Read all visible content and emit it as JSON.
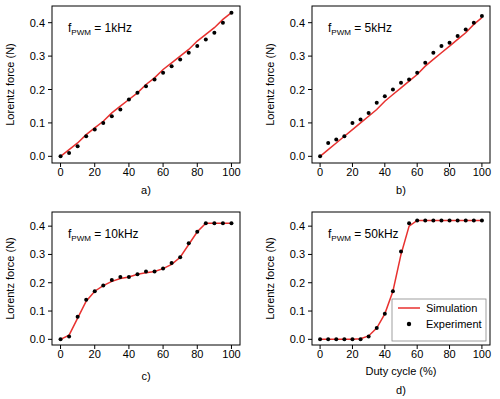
{
  "chart_data": [
    {
      "type": "line",
      "panel_label": "a)",
      "y_label": "Lorentz force (N)",
      "annotation": {
        "base": "f",
        "sub": "PWM",
        "rest": " = 1kHz"
      },
      "x": [
        0,
        5,
        10,
        15,
        20,
        25,
        30,
        35,
        40,
        45,
        50,
        55,
        60,
        65,
        70,
        75,
        80,
        85,
        90,
        95,
        100
      ],
      "xlim": [
        -5,
        105
      ],
      "xticks": [
        0,
        20,
        40,
        60,
        80,
        100
      ],
      "ylim": [
        -0.02,
        0.45
      ],
      "yticks": [
        {
          "value": 0,
          "label": "0.0"
        },
        0.1,
        0.2,
        0.3,
        0.4
      ],
      "series": [
        {
          "type": "line",
          "color": "#e8312f",
          "line_style": "solid",
          "values": [
            0,
            0.02,
            0.04,
            0.065,
            0.085,
            0.105,
            0.13,
            0.15,
            0.17,
            0.19,
            0.215,
            0.235,
            0.26,
            0.28,
            0.3,
            0.32,
            0.345,
            0.365,
            0.385,
            0.41,
            0.43
          ]
        },
        {
          "type": "scatter",
          "color": "#000000",
          "marker": "circle",
          "values": [
            0,
            0.01,
            0.03,
            0.06,
            0.08,
            0.1,
            0.12,
            0.14,
            0.17,
            0.19,
            0.21,
            0.23,
            0.25,
            0.27,
            0.29,
            0.31,
            0.33,
            0.35,
            0.37,
            0.4,
            0.43
          ]
        }
      ]
    },
    {
      "type": "line",
      "panel_label": "b)",
      "y_label": "Lorentz force (N)",
      "annotation": {
        "base": "f",
        "sub": "PWM",
        "rest": " = 5kHz"
      },
      "x": [
        0,
        5,
        10,
        15,
        20,
        25,
        30,
        35,
        40,
        45,
        50,
        55,
        60,
        65,
        70,
        75,
        80,
        85,
        90,
        95,
        100
      ],
      "xlim": [
        -5,
        105
      ],
      "xticks": [
        0,
        20,
        40,
        60,
        80,
        100
      ],
      "ylim": [
        -0.02,
        0.45
      ],
      "yticks": [
        {
          "value": 0,
          "label": "0.0"
        },
        0.1,
        0.2,
        0.3,
        0.4
      ],
      "series": [
        {
          "type": "line",
          "color": "#e8312f",
          "line_style": "solid",
          "values": [
            0,
            0.02,
            0.04,
            0.06,
            0.08,
            0.1,
            0.12,
            0.14,
            0.165,
            0.185,
            0.205,
            0.225,
            0.245,
            0.27,
            0.29,
            0.31,
            0.33,
            0.35,
            0.37,
            0.395,
            0.415
          ]
        },
        {
          "type": "scatter",
          "color": "#000000",
          "marker": "circle",
          "values": [
            0,
            0.04,
            0.05,
            0.06,
            0.1,
            0.11,
            0.13,
            0.16,
            0.18,
            0.2,
            0.22,
            0.23,
            0.25,
            0.28,
            0.31,
            0.33,
            0.34,
            0.36,
            0.38,
            0.4,
            0.42
          ]
        }
      ]
    },
    {
      "type": "line",
      "panel_label": "c)",
      "y_label": "Lorentz force (N)",
      "annotation": {
        "base": "f",
        "sub": "PWM",
        "rest": " = 10kHz"
      },
      "x": [
        0,
        5,
        10,
        15,
        20,
        25,
        30,
        35,
        40,
        45,
        50,
        55,
        60,
        65,
        70,
        75,
        80,
        85,
        90,
        95,
        100
      ],
      "xlim": [
        -5,
        105
      ],
      "xticks": [
        0,
        20,
        40,
        60,
        80,
        100
      ],
      "ylim": [
        -0.02,
        0.45
      ],
      "yticks": [
        {
          "value": 0,
          "label": "0.0"
        },
        0.1,
        0.2,
        0.3,
        0.4
      ],
      "series": [
        {
          "type": "line",
          "color": "#e8312f",
          "line_style": "solid",
          "values": [
            0,
            0.015,
            0.075,
            0.135,
            0.17,
            0.19,
            0.205,
            0.215,
            0.22,
            0.23,
            0.235,
            0.24,
            0.25,
            0.265,
            0.29,
            0.335,
            0.38,
            0.41,
            0.41,
            0.41,
            0.41
          ]
        },
        {
          "type": "scatter",
          "color": "#000000",
          "marker": "circle",
          "values": [
            0,
            0.01,
            0.08,
            0.14,
            0.17,
            0.19,
            0.21,
            0.22,
            0.22,
            0.23,
            0.24,
            0.24,
            0.25,
            0.27,
            0.29,
            0.34,
            0.38,
            0.41,
            0.41,
            0.41,
            0.41
          ]
        }
      ]
    },
    {
      "type": "line",
      "panel_label": "d)",
      "y_label": "Lorentz force (N)",
      "x_label": "Duty cycle (%)",
      "annotation": {
        "base": "f",
        "sub": "PWM",
        "rest": " = 50kHz"
      },
      "legend": "lower right",
      "x": [
        0,
        5,
        10,
        15,
        20,
        25,
        30,
        35,
        40,
        45,
        50,
        55,
        60,
        65,
        70,
        75,
        80,
        85,
        90,
        95,
        100
      ],
      "xlim": [
        -5,
        105
      ],
      "xticks": [
        0,
        20,
        40,
        60,
        80,
        100
      ],
      "ylim": [
        -0.02,
        0.45
      ],
      "yticks": [
        {
          "value": 0,
          "label": "0.0"
        },
        0.1,
        0.2,
        0.3,
        0.4
      ],
      "series": [
        {
          "name": "Simulation",
          "type": "line",
          "color": "#e8312f",
          "line_style": "solid",
          "values": [
            0,
            0,
            0,
            0,
            0,
            0.002,
            0.012,
            0.04,
            0.09,
            0.17,
            0.3,
            0.4,
            0.42,
            0.42,
            0.42,
            0.42,
            0.42,
            0.42,
            0.42,
            0.42,
            0.42
          ]
        },
        {
          "name": "Experiment",
          "type": "scatter",
          "color": "#000000",
          "marker": "circle",
          "values": [
            0,
            0,
            0,
            0,
            0,
            0,
            0.01,
            0.04,
            0.09,
            0.17,
            0.31,
            0.41,
            0.42,
            0.42,
            0.42,
            0.42,
            0.42,
            0.42,
            0.42,
            0.42,
            0.42
          ]
        }
      ]
    }
  ]
}
